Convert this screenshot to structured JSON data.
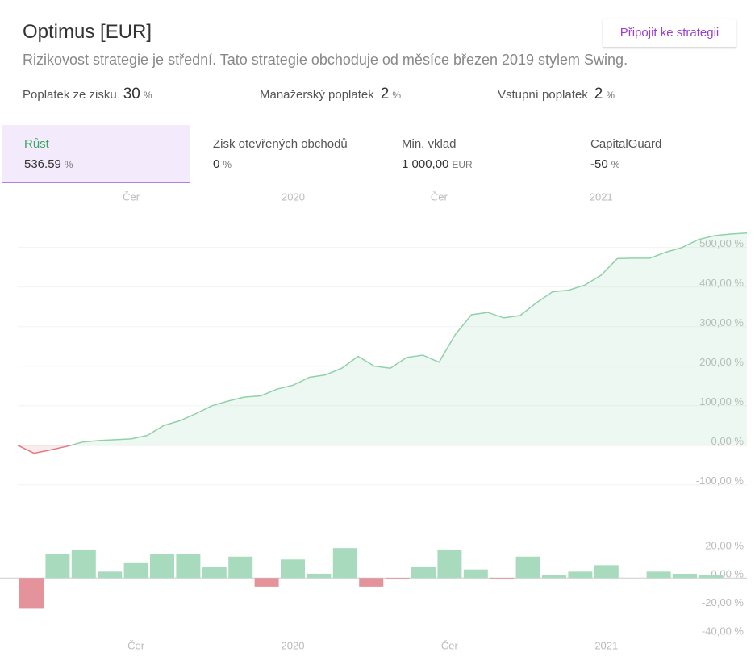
{
  "header": {
    "title": "Optimus [EUR]",
    "button": "Připojit ke strategii",
    "description": "Rizikovost strategie je střední. Tato strategie obchoduje od měsíce březen 2019 stylem Swing."
  },
  "fees": [
    {
      "label": "Poplatek ze zisku",
      "value": "30",
      "unit": "%"
    },
    {
      "label": "Manažerský poplatek",
      "value": "2",
      "unit": "%"
    },
    {
      "label": "Vstupní poplatek",
      "value": "2",
      "unit": "%"
    }
  ],
  "stats": [
    {
      "label": "Růst",
      "value": "536.59",
      "unit": "%"
    },
    {
      "label": "Zisk otevřených obchodů",
      "value": "0",
      "unit": "%"
    },
    {
      "label": "Min. vklad",
      "value": "1 000,00",
      "unit": "EUR"
    },
    {
      "label": "CapitalGuard",
      "value": "-50",
      "unit": "%"
    }
  ],
  "chart_data": [
    {
      "type": "line",
      "categories": [
        null,
        null,
        null,
        null,
        null,
        null,
        null,
        "Čer",
        null,
        null,
        null,
        null,
        null,
        null,
        null,
        null,
        null,
        "2020",
        null,
        null,
        null,
        null,
        null,
        null,
        null,
        null,
        "Čer",
        null,
        null,
        null,
        null,
        null,
        null,
        null,
        null,
        null,
        "2021",
        null,
        null,
        null,
        null,
        null,
        null,
        null,
        null,
        null
      ],
      "values": [
        0,
        -20,
        -12,
        -3,
        8,
        12,
        14,
        16,
        25,
        50,
        62,
        80,
        100,
        112,
        122,
        125,
        142,
        152,
        172,
        178,
        195,
        225,
        200,
        195,
        222,
        228,
        210,
        280,
        330,
        336,
        322,
        328,
        360,
        388,
        392,
        405,
        430,
        472,
        473,
        473,
        488,
        500,
        520,
        530,
        534,
        536.59
      ],
      "color": "#8fd1a8",
      "negative_color": "#e07a80",
      "ylim": [
        -180,
        585
      ],
      "yticks": [
        {
          "value": -100,
          "label": "-100,00 %"
        },
        {
          "value": 0,
          "label": "0,00 %"
        },
        {
          "value": 100,
          "label": "100,00 %"
        },
        {
          "value": 200,
          "label": "200,00 %"
        },
        {
          "value": 300,
          "label": "300,00 %"
        },
        {
          "value": 400,
          "label": "400,00 %"
        },
        {
          "value": 500,
          "label": "500,00 %"
        }
      ],
      "grid": true
    },
    {
      "type": "bar",
      "categories": [
        null,
        null,
        null,
        null,
        "Čer",
        null,
        null,
        null,
        null,
        null,
        "2020",
        null,
        null,
        null,
        null,
        null,
        "Čer",
        null,
        null,
        null,
        null,
        null,
        "2021",
        null,
        null,
        null,
        null
      ],
      "values": [
        -21,
        17,
        20,
        4.5,
        11,
        17,
        17,
        8,
        15,
        -6,
        13,
        3,
        21,
        -6,
        -1,
        8,
        20,
        6,
        -1,
        15,
        2,
        4.5,
        9,
        0,
        4.5,
        3,
        2
      ],
      "color": "#a8dbbd",
      "negative_color": "#e5939b",
      "ylim": [
        -40,
        29
      ],
      "yticks": [
        {
          "value": -40,
          "label": "-40,00 %"
        },
        {
          "value": -20,
          "label": "-20,00 %"
        },
        {
          "value": 0,
          "label": "0,00 %"
        },
        {
          "value": 20,
          "label": "20,00 %"
        }
      ]
    }
  ]
}
